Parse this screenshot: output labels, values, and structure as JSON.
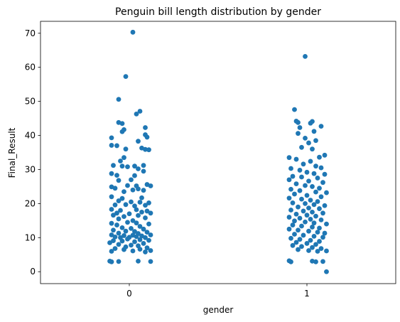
{
  "chart_data": {
    "type": "scatter",
    "subtype": "strip",
    "title": "Penguin bill length distribution by gender",
    "xlabel": "gender",
    "ylabel": "Final_Result",
    "categories": [
      "0",
      "1"
    ],
    "xlim": [
      -0.5,
      1.5
    ],
    "ylim": [
      -3.5,
      73.5
    ],
    "yticks": [
      0,
      10,
      20,
      30,
      40,
      50,
      60,
      70
    ],
    "color": "#1f77b4",
    "grid": false,
    "series": [
      {
        "category": "0",
        "points": [
          [
            0.02,
            70.3
          ],
          [
            -0.02,
            57.3
          ],
          [
            -0.06,
            50.6
          ],
          [
            -0.06,
            43.8
          ],
          [
            -0.04,
            43.5
          ],
          [
            0.06,
            47.1
          ],
          [
            0.04,
            46.3
          ],
          [
            0.09,
            42.3
          ],
          [
            -0.03,
            41.7
          ],
          [
            -0.04,
            41.1
          ],
          [
            -0.1,
            39.3
          ],
          [
            0.09,
            40.2
          ],
          [
            0.1,
            39.5
          ],
          [
            0.05,
            38.3
          ],
          [
            -0.1,
            37.1
          ],
          [
            -0.07,
            37.0
          ],
          [
            0.07,
            36.3
          ],
          [
            -0.02,
            36.0
          ],
          [
            0.09,
            35.9
          ],
          [
            0.11,
            35.8
          ],
          [
            -0.03,
            33.5
          ],
          [
            -0.05,
            32.5
          ],
          [
            -0.09,
            31.2
          ],
          [
            -0.04,
            31.0
          ],
          [
            0.08,
            31.2
          ],
          [
            0.03,
            31.0
          ],
          [
            -0.01,
            30.8
          ],
          [
            0.05,
            30.2
          ],
          [
            -0.1,
            28.8
          ],
          [
            -0.07,
            28.3
          ],
          [
            0.03,
            28.2
          ],
          [
            0.08,
            29.5
          ],
          [
            -0.06,
            26.8
          ],
          [
            0.01,
            27.0
          ],
          [
            -0.01,
            25.3
          ],
          [
            -0.1,
            24.9
          ],
          [
            0.04,
            25.2
          ],
          [
            0.1,
            25.6
          ],
          [
            0.12,
            25.2
          ],
          [
            -0.08,
            24.5
          ],
          [
            0.02,
            24.0
          ],
          [
            0.05,
            24.3
          ],
          [
            -0.03,
            23.5
          ],
          [
            0.08,
            23.9
          ],
          [
            -0.1,
            22.0
          ],
          [
            -0.04,
            21.5
          ],
          [
            0.07,
            21.7
          ],
          [
            -0.06,
            20.8
          ],
          [
            0.01,
            20.5
          ],
          [
            0.06,
            20.4
          ],
          [
            0.11,
            20.2
          ],
          [
            -0.08,
            19.6
          ],
          [
            -0.02,
            19.7
          ],
          [
            0.03,
            19.3
          ],
          [
            0.09,
            19.5
          ],
          [
            -0.1,
            18.3
          ],
          [
            -0.05,
            18.0
          ],
          [
            0.04,
            18.2
          ],
          [
            0.1,
            17.8
          ],
          [
            -0.07,
            17.2
          ],
          [
            0.0,
            17.0
          ],
          [
            0.07,
            17.5
          ],
          [
            0.12,
            17.2
          ],
          [
            -0.09,
            16.6
          ],
          [
            -0.03,
            16.2
          ],
          [
            0.05,
            16.5
          ],
          [
            -0.06,
            15.5
          ],
          [
            0.02,
            15.0
          ],
          [
            0.09,
            15.8
          ],
          [
            -0.1,
            14.2
          ],
          [
            -0.01,
            14.5
          ],
          [
            0.04,
            14.3
          ],
          [
            0.11,
            14.0
          ],
          [
            -0.07,
            13.7
          ],
          [
            0.06,
            13.3
          ],
          [
            -0.04,
            12.9
          ],
          [
            0.01,
            12.7
          ],
          [
            0.08,
            12.5
          ],
          [
            -0.09,
            12.2
          ],
          [
            -0.02,
            11.9
          ],
          [
            0.03,
            11.8
          ],
          [
            0.1,
            11.6
          ],
          [
            -0.06,
            11.3
          ],
          [
            0.05,
            11.2
          ],
          [
            -0.1,
            10.8
          ],
          [
            -0.03,
            10.6
          ],
          [
            0.02,
            10.7
          ],
          [
            0.07,
            10.5
          ],
          [
            0.12,
            10.8
          ],
          [
            -0.08,
            10.2
          ],
          [
            -0.05,
            10.0
          ],
          [
            0.0,
            10.1
          ],
          [
            0.04,
            10.3
          ],
          [
            0.09,
            10.0
          ],
          [
            -0.01,
            9.6
          ],
          [
            0.06,
            9.4
          ],
          [
            -0.09,
            9.1
          ],
          [
            -0.04,
            9.0
          ],
          [
            0.03,
            8.8
          ],
          [
            0.11,
            9.2
          ],
          [
            -0.11,
            8.5
          ],
          [
            0.08,
            8.3
          ],
          [
            -0.06,
            8.0
          ],
          [
            0.01,
            7.8
          ],
          [
            0.05,
            7.6
          ],
          [
            -0.02,
            7.3
          ],
          [
            0.1,
            7.0
          ],
          [
            -0.08,
            6.8
          ],
          [
            -0.03,
            6.5
          ],
          [
            0.06,
            6.6
          ],
          [
            0.12,
            6.2
          ],
          [
            -0.1,
            6.0
          ],
          [
            0.02,
            6.1
          ],
          [
            0.09,
            5.8
          ],
          [
            -0.11,
            3.1
          ],
          [
            -0.1,
            2.9
          ],
          [
            -0.06,
            3.0
          ],
          [
            0.05,
            3.1
          ],
          [
            0.12,
            3.0
          ]
        ]
      },
      {
        "category": "1",
        "points": [
          [
            0.99,
            63.2
          ],
          [
            0.93,
            47.6
          ],
          [
            0.94,
            44.2
          ],
          [
            0.95,
            43.8
          ],
          [
            1.02,
            43.6
          ],
          [
            1.03,
            44.1
          ],
          [
            1.08,
            42.7
          ],
          [
            0.96,
            42.3
          ],
          [
            1.04,
            41.2
          ],
          [
            0.95,
            40.6
          ],
          [
            0.99,
            39.2
          ],
          [
            1.05,
            38.5
          ],
          [
            1.01,
            37.8
          ],
          [
            0.97,
            36.5
          ],
          [
            1.03,
            36.0
          ],
          [
            0.9,
            33.5
          ],
          [
            1.07,
            33.6
          ],
          [
            1.1,
            34.2
          ],
          [
            0.94,
            33.0
          ],
          [
            1.02,
            32.4
          ],
          [
            0.98,
            31.6
          ],
          [
            1.05,
            31.0
          ],
          [
            0.91,
            30.3
          ],
          [
            1.08,
            30.5
          ],
          [
            0.96,
            29.8
          ],
          [
            1.0,
            29.2
          ],
          [
            1.04,
            28.8
          ],
          [
            1.1,
            28.6
          ],
          [
            0.92,
            28.0
          ],
          [
            0.97,
            27.8
          ],
          [
            1.06,
            27.5
          ],
          [
            0.9,
            27.0
          ],
          [
            1.01,
            26.6
          ],
          [
            1.09,
            26.2
          ],
          [
            0.94,
            25.8
          ],
          [
            0.99,
            25.3
          ],
          [
            1.03,
            25.0
          ],
          [
            1.07,
            24.5
          ],
          [
            0.91,
            24.2
          ],
          [
            0.96,
            23.8
          ],
          [
            1.05,
            23.4
          ],
          [
            1.11,
            23.2
          ],
          [
            0.93,
            22.8
          ],
          [
            1.0,
            22.4
          ],
          [
            1.08,
            22.0
          ],
          [
            0.9,
            21.6
          ],
          [
            0.97,
            21.3
          ],
          [
            1.02,
            21.0
          ],
          [
            1.06,
            20.6
          ],
          [
            0.92,
            20.2
          ],
          [
            0.99,
            20.0
          ],
          [
            1.04,
            19.7
          ],
          [
            1.1,
            19.4
          ],
          [
            0.95,
            19.0
          ],
          [
            1.01,
            18.7
          ],
          [
            1.07,
            18.5
          ],
          [
            0.91,
            18.1
          ],
          [
            0.98,
            17.8
          ],
          [
            1.03,
            17.5
          ],
          [
            1.09,
            17.2
          ],
          [
            0.94,
            16.9
          ],
          [
            1.0,
            16.6
          ],
          [
            1.05,
            16.3
          ],
          [
            0.9,
            16.0
          ],
          [
            0.96,
            15.7
          ],
          [
            1.02,
            15.4
          ],
          [
            1.08,
            15.2
          ],
          [
            0.93,
            14.9
          ],
          [
            0.99,
            14.6
          ],
          [
            1.04,
            14.3
          ],
          [
            1.11,
            14.0
          ],
          [
            0.92,
            13.7
          ],
          [
            0.97,
            13.4
          ],
          [
            1.03,
            13.1
          ],
          [
            1.07,
            12.8
          ],
          [
            0.9,
            12.5
          ],
          [
            0.95,
            12.2
          ],
          [
            1.01,
            11.9
          ],
          [
            1.06,
            11.6
          ],
          [
            1.1,
            11.3
          ],
          [
            0.93,
            11.0
          ],
          [
            0.98,
            10.7
          ],
          [
            1.04,
            10.4
          ],
          [
            1.09,
            10.1
          ],
          [
            0.91,
            9.8
          ],
          [
            0.96,
            9.5
          ],
          [
            1.02,
            9.2
          ],
          [
            1.07,
            8.9
          ],
          [
            0.94,
            8.6
          ],
          [
            1.0,
            8.3
          ],
          [
            1.05,
            8.0
          ],
          [
            0.92,
            7.7
          ],
          [
            0.97,
            7.4
          ],
          [
            1.03,
            7.1
          ],
          [
            1.08,
            6.8
          ],
          [
            0.95,
            6.5
          ],
          [
            1.01,
            6.2
          ],
          [
            1.06,
            6.0
          ],
          [
            1.11,
            6.1
          ],
          [
            0.9,
            3.2
          ],
          [
            0.91,
            2.9
          ],
          [
            1.03,
            3.1
          ],
          [
            1.05,
            2.9
          ],
          [
            1.09,
            3.0
          ],
          [
            1.11,
            0.0
          ]
        ]
      }
    ]
  }
}
